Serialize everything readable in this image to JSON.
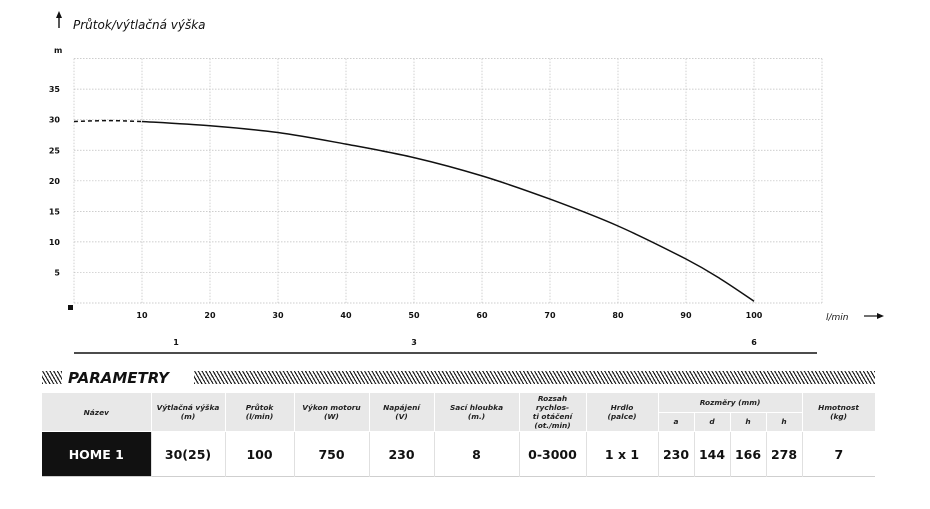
{
  "chart_data": {
    "type": "line",
    "title": "Průtok/výtlačná výška",
    "ylabel": "m",
    "xlabel": "l/min",
    "x_ticks": [
      10,
      20,
      30,
      40,
      50,
      60,
      70,
      80,
      90,
      100
    ],
    "y_ticks": [
      5,
      10,
      15,
      20,
      25,
      30,
      35
    ],
    "xlim": [
      0,
      110
    ],
    "ylim": [
      0,
      40
    ],
    "grid": true,
    "secondary_axis": {
      "ticks": [
        {
          "label": "1",
          "at": 15
        },
        {
          "label": "3",
          "at": 50
        },
        {
          "label": "6",
          "at": 100
        }
      ]
    },
    "series": [
      {
        "style": "dashed",
        "points": [
          [
            0,
            29.7
          ],
          [
            5,
            29.85
          ],
          [
            10,
            29.7
          ]
        ]
      },
      {
        "style": "solid",
        "points": [
          [
            10,
            29.7
          ],
          [
            20,
            29.0
          ],
          [
            30,
            27.9
          ],
          [
            40,
            26.0
          ],
          [
            50,
            23.8
          ],
          [
            60,
            20.8
          ],
          [
            70,
            17.0
          ],
          [
            80,
            12.6
          ],
          [
            90,
            7.2
          ],
          [
            95,
            4.0
          ],
          [
            100,
            0.3
          ]
        ]
      }
    ]
  },
  "params": {
    "title": "PARAMETRY",
    "headers": {
      "name": "Název",
      "head": [
        "Výtlačná výška",
        "(m)"
      ],
      "flow": [
        "Průtok",
        "(l/min)"
      ],
      "power": [
        "Výkon motoru",
        "(W)"
      ],
      "voltage": [
        "Napájení",
        "(V)"
      ],
      "suction": [
        "Sací hloubka",
        "(m.)"
      ],
      "speed": [
        "Rozsah rychlos-",
        "ti otáčení",
        "(ot./min)"
      ],
      "outlet": [
        "Hrdlo",
        "(palce)"
      ],
      "dimensions": "Rozměry (mm)",
      "dim_sub": [
        "a",
        "d",
        "h",
        "h"
      ],
      "weight": [
        "Hmotnost",
        "(kg)"
      ]
    },
    "row": {
      "name": "HOME 1",
      "head": "30(25)",
      "flow": "100",
      "power": "750",
      "voltage": "230",
      "suction": "8",
      "speed": "0-3000",
      "outlet": "1 x 1",
      "dim": [
        "230",
        "144",
        "166",
        "278"
      ],
      "weight": "7"
    }
  }
}
